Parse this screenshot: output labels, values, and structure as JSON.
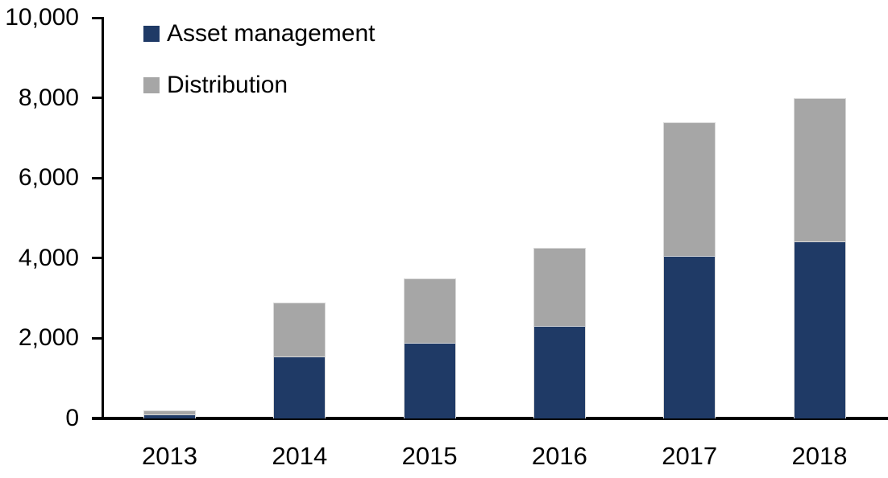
{
  "chart_data": {
    "type": "bar",
    "stacked": true,
    "title": "",
    "xlabel": "",
    "ylabel": "",
    "categories": [
      "2013",
      "2014",
      "2015",
      "2016",
      "2017",
      "2018"
    ],
    "series": [
      {
        "name": "Asset management",
        "color": "#1f3a66",
        "values": [
          110,
          1550,
          1890,
          2310,
          4060,
          4420
        ]
      },
      {
        "name": "Distribution",
        "color": "#a6a6a6",
        "values": [
          100,
          1340,
          1610,
          1940,
          3320,
          3580
        ]
      }
    ],
    "totals": [
      210,
      2890,
      3500,
      4250,
      7380,
      8000
    ],
    "ylim": [
      0,
      10000
    ],
    "ytick_interval": 2000,
    "ytick_labels": [
      "0",
      "2,000",
      "4,000",
      "6,000",
      "8,000",
      "10,000"
    ],
    "grid": false,
    "legend_position": "top-left-inside",
    "axis_color": "#000000",
    "background_color": "#ffffff"
  }
}
